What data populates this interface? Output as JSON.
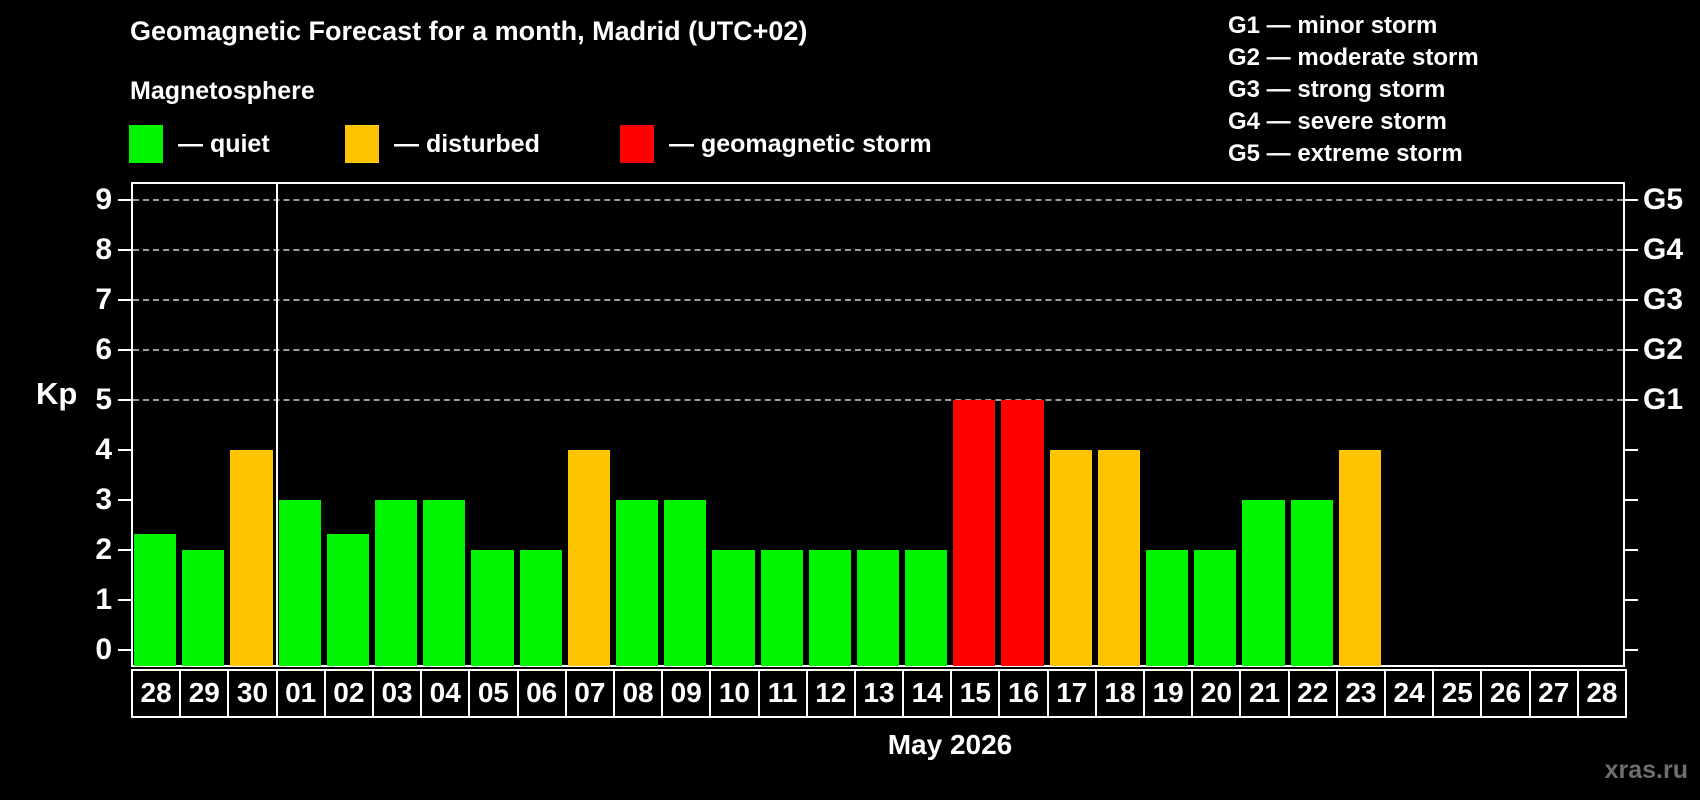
{
  "header": {
    "title": "Geomagnetic Forecast for a month, Madrid (UTC+02)",
    "subtitle": "Magnetosphere"
  },
  "legend": {
    "items": [
      {
        "name": "quiet",
        "label": "— quiet",
        "color": "#00f400"
      },
      {
        "name": "disturbed",
        "label": "— disturbed",
        "color": "#ffc400"
      },
      {
        "name": "storm",
        "label": "— geomagnetic storm",
        "color": "#ff0000"
      }
    ]
  },
  "g_legend": {
    "items": [
      "G1 — minor storm",
      "G2 — moderate storm",
      "G3 — strong storm",
      "G4 — severe storm",
      "G5 — extreme storm"
    ]
  },
  "chart_data": {
    "type": "bar",
    "title": "Geomagnetic Forecast for a month, Madrid (UTC+02)",
    "subtitle": "Magnetosphere",
    "ylabel": "Kp",
    "xlabel": "May 2026",
    "ylim": [
      0,
      9
    ],
    "y_ticks": [
      0,
      1,
      2,
      3,
      4,
      5,
      6,
      7,
      8,
      9
    ],
    "gridlines_at": [
      5,
      6,
      7,
      8,
      9
    ],
    "grid_style": "dashed",
    "categories": [
      "28",
      "29",
      "30",
      "01",
      "02",
      "03",
      "04",
      "05",
      "06",
      "07",
      "08",
      "09",
      "10",
      "11",
      "12",
      "13",
      "14",
      "15",
      "16",
      "17",
      "18",
      "19",
      "20",
      "21",
      "22",
      "23",
      "24",
      "25",
      "26",
      "27",
      "28"
    ],
    "values": [
      2.33,
      2,
      4,
      3,
      2.33,
      3,
      3,
      2,
      2,
      4,
      3,
      3,
      2,
      2,
      2,
      2,
      2,
      5,
      5,
      4,
      4,
      2,
      2,
      3,
      3,
      4,
      null,
      null,
      null,
      null,
      null
    ],
    "states": [
      "quiet",
      "quiet",
      "disturbed",
      "quiet",
      "quiet",
      "quiet",
      "quiet",
      "quiet",
      "quiet",
      "disturbed",
      "quiet",
      "quiet",
      "quiet",
      "quiet",
      "quiet",
      "quiet",
      "quiet",
      "storm",
      "storm",
      "disturbed",
      "disturbed",
      "quiet",
      "quiet",
      "quiet",
      "quiet",
      "disturbed",
      null,
      null,
      null,
      null,
      null
    ],
    "colors": {
      "quiet": "#00f400",
      "disturbed": "#ffc400",
      "storm": "#ff0000"
    },
    "right_axis": {
      "labels": [
        "G1",
        "G2",
        "G3",
        "G4",
        "G5"
      ],
      "levels": [
        5,
        6,
        7,
        8,
        9
      ]
    },
    "month_separator_after_index": 2,
    "month_label": "May 2026",
    "legend_position": "top-left"
  },
  "watermark": "xras.ru"
}
